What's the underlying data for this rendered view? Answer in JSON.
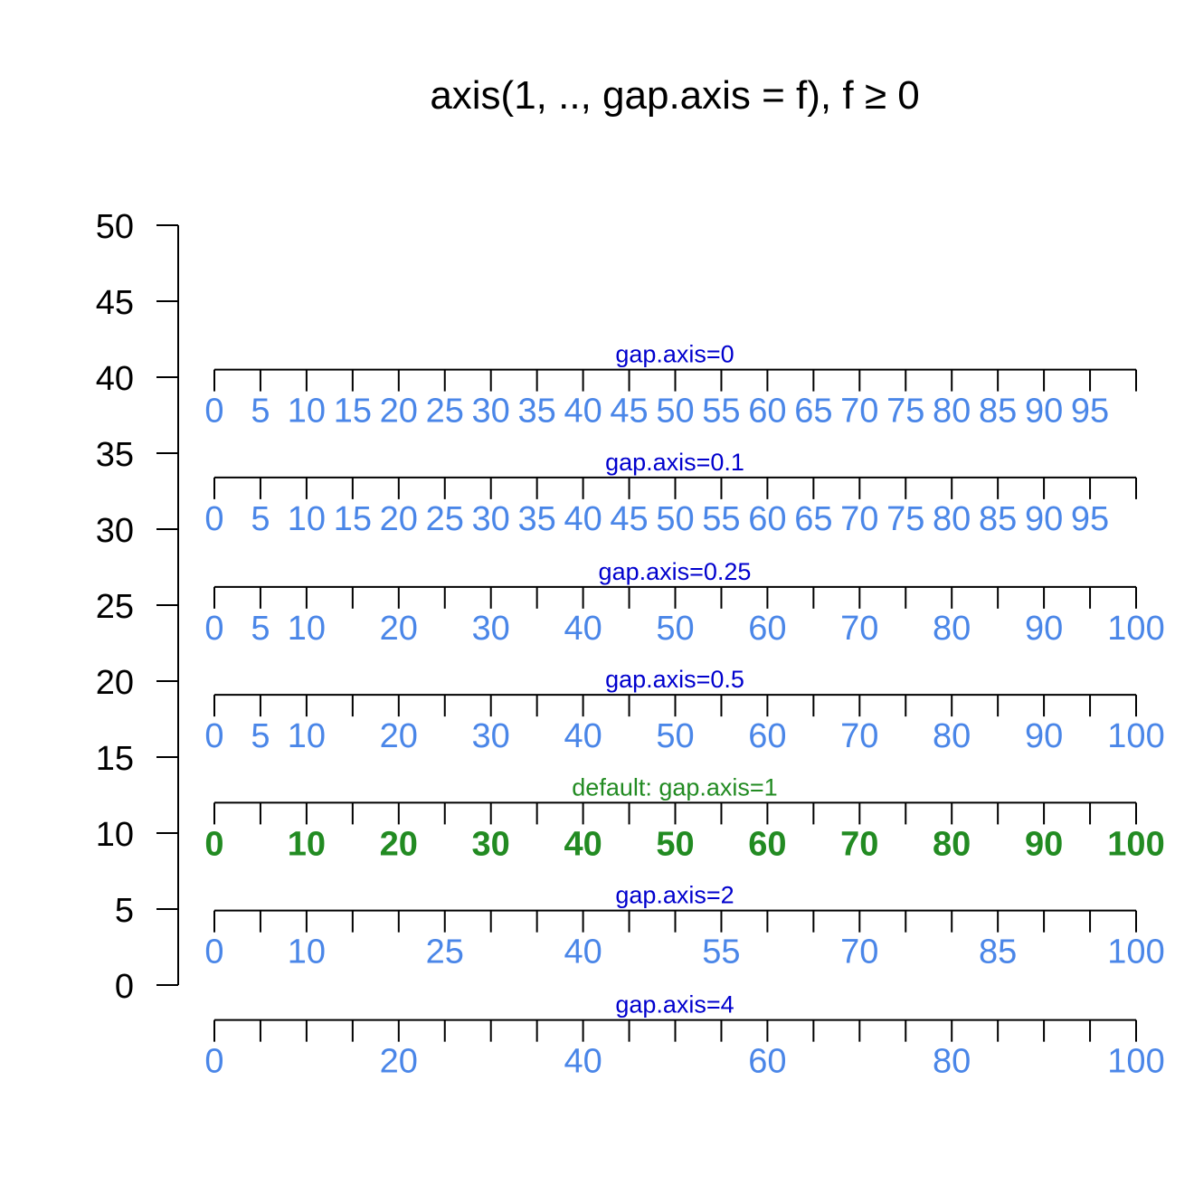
{
  "chart_data": {
    "type": "axis-demo",
    "title": "axis(1, .., gap.axis = f),  f ≥ 0",
    "y_axis": {
      "ticks": [
        "0",
        "5",
        "10",
        "15",
        "20",
        "25",
        "30",
        "35",
        "40",
        "45",
        "50"
      ],
      "ylim": [
        0,
        50
      ]
    },
    "x_range": [
      0,
      100
    ],
    "tick_values": [
      0,
      5,
      10,
      15,
      20,
      25,
      30,
      35,
      40,
      45,
      50,
      55,
      60,
      65,
      70,
      75,
      80,
      85,
      90,
      95,
      100
    ],
    "colors": {
      "label": "#4a86e8",
      "caption": "#0000cd",
      "default": "#228b22",
      "axis": "#000000"
    },
    "rows": [
      {
        "y": 40.5,
        "caption": "gap.axis=0",
        "labels": [
          "0",
          "5",
          "10",
          "15",
          "20",
          "25",
          "30",
          "35",
          "40",
          "45",
          "50",
          "55",
          "60",
          "65",
          "70",
          "75",
          "80",
          "85",
          "90",
          "95"
        ],
        "is_default": false
      },
      {
        "y": 33.4,
        "caption": "gap.axis=0.1",
        "labels": [
          "0",
          "5",
          "10",
          "15",
          "20",
          "25",
          "30",
          "35",
          "40",
          "45",
          "50",
          "55",
          "60",
          "65",
          "70",
          "75",
          "80",
          "85",
          "90",
          "95"
        ],
        "is_default": false
      },
      {
        "y": 26.2,
        "caption": "gap.axis=0.25",
        "labels": [
          "0",
          "5",
          "10",
          "20",
          "30",
          "40",
          "50",
          "60",
          "70",
          "80",
          "90",
          "100"
        ],
        "is_default": false
      },
      {
        "y": 19.1,
        "caption": "gap.axis=0.5",
        "labels": [
          "0",
          "5",
          "10",
          "20",
          "30",
          "40",
          "50",
          "60",
          "70",
          "80",
          "90",
          "100"
        ],
        "is_default": false
      },
      {
        "y": 12.0,
        "caption": "default:  gap.axis=1",
        "labels": [
          "0",
          "10",
          "20",
          "30",
          "40",
          "50",
          "60",
          "70",
          "80",
          "90",
          "100"
        ],
        "is_default": true
      },
      {
        "y": 4.9,
        "caption": "gap.axis=2",
        "labels": [
          "0",
          "10",
          "25",
          "40",
          "55",
          "70",
          "85",
          "100"
        ],
        "is_default": false
      },
      {
        "y": -2.3,
        "caption": "gap.axis=4",
        "labels": [
          "0",
          "20",
          "40",
          "60",
          "80",
          "100"
        ],
        "is_default": false
      }
    ]
  }
}
